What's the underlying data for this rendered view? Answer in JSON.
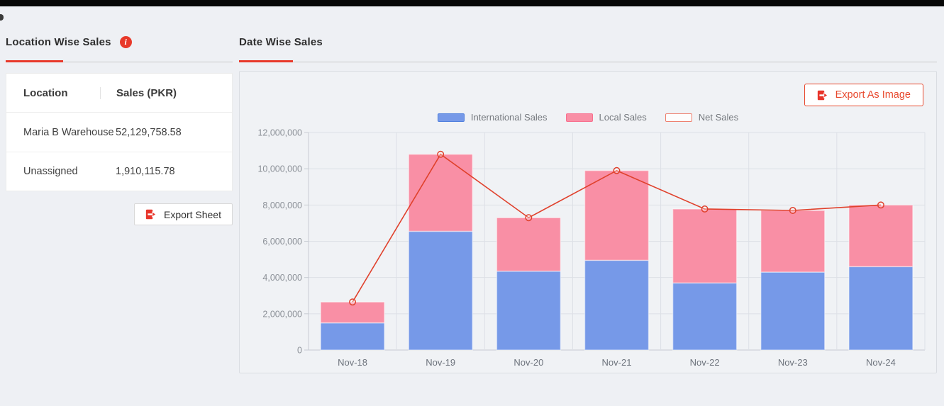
{
  "page": {
    "background": "#eef0f4",
    "accent_red": "#e8392a"
  },
  "location_panel": {
    "title": "Location Wise Sales",
    "table": {
      "columns": [
        "Location",
        "Sales (PKR)"
      ],
      "rows": [
        {
          "location": "Maria B Warehouse",
          "sales": "52,129,758.58"
        },
        {
          "location": "Unassigned",
          "sales": "1,910,115.78"
        }
      ]
    },
    "export_button_label": "Export Sheet"
  },
  "date_panel": {
    "title": "Date Wise Sales",
    "export_button_label": "Export As Image"
  },
  "chart_data": {
    "type": "bar",
    "stacked": true,
    "title": "Date Wise Sales",
    "categories": [
      "Nov-18",
      "Nov-19",
      "Nov-20",
      "Nov-21",
      "Nov-22",
      "Nov-23",
      "Nov-24"
    ],
    "series": [
      {
        "name": "International Sales",
        "type": "bar",
        "color": "#7699e8",
        "border_color": "#4f7fdd",
        "values": [
          1500000,
          6550000,
          4350000,
          4950000,
          3700000,
          4300000,
          4600000
        ]
      },
      {
        "name": "Local Sales",
        "type": "bar",
        "color": "#f98fa5",
        "border_color": "#f8708e",
        "values": [
          1150000,
          4250000,
          2950000,
          4950000,
          4080000,
          3400000,
          3400000
        ]
      },
      {
        "name": "Net Sales",
        "type": "line",
        "color": "#e0412c",
        "legend_border": "#ee8170",
        "values": [
          2650000,
          10800000,
          7300000,
          9900000,
          7780000,
          7700000,
          8000000
        ]
      }
    ],
    "ylim": [
      0,
      12000000
    ],
    "y_ticks": [
      "0",
      "2,000,000",
      "4,000,000",
      "6,000,000",
      "8,000,000",
      "10,000,000",
      "12,000,000"
    ],
    "y_tick_step": 2000000,
    "grid": true,
    "legend_position": "top",
    "colors": {
      "plot_bg": "#f0f2f5",
      "grid_line": "#dde0e6",
      "axis_line": "#c7cbd2",
      "y_label": "#8b9097",
      "x_label": "#6d737c"
    }
  }
}
